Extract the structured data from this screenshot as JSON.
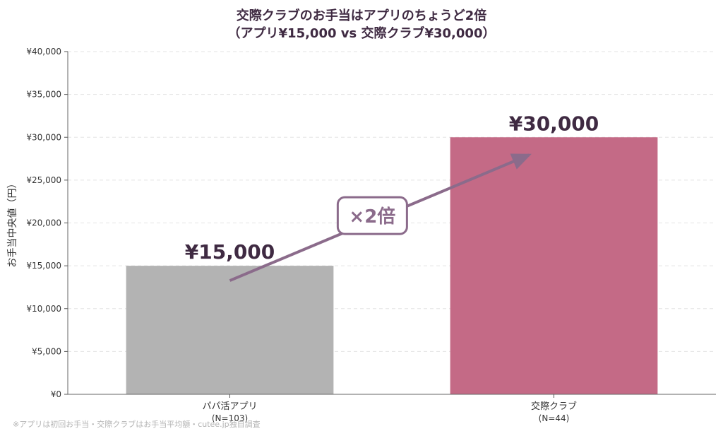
{
  "chart_data": {
    "type": "bar",
    "title_lines": [
      "交際クラブのお手当はアプリのちょうど2倍",
      "（アプリ¥15,000 vs 交際クラブ¥30,000）"
    ],
    "ylabel": "お手当中央値（円）",
    "xlabel": "",
    "ylim": [
      0,
      40000
    ],
    "yticks": [
      0,
      5000,
      10000,
      15000,
      20000,
      25000,
      30000,
      35000,
      40000
    ],
    "ytick_labels": [
      "¥0",
      "¥5,000",
      "¥10,000",
      "¥15,000",
      "¥20,000",
      "¥25,000",
      "¥30,000",
      "¥35,000",
      "¥40,000"
    ],
    "grid": "horizontal dashed",
    "categories": [
      {
        "label": "パパ活アプリ",
        "sublabel": "(N=103)"
      },
      {
        "label": "交際クラブ",
        "sublabel": "(N=44)"
      }
    ],
    "values": [
      15000,
      30000
    ],
    "value_labels": [
      "¥15,000",
      "¥30,000"
    ],
    "bar_colors": [
      "#b3b3b3",
      "#c46a86"
    ],
    "annotation": {
      "text": "×2倍",
      "color": "#8b6b8b"
    },
    "footnote": "※アプリは初回お手当・交際クラブはお手当平均額・cutee.jp独自調査"
  }
}
